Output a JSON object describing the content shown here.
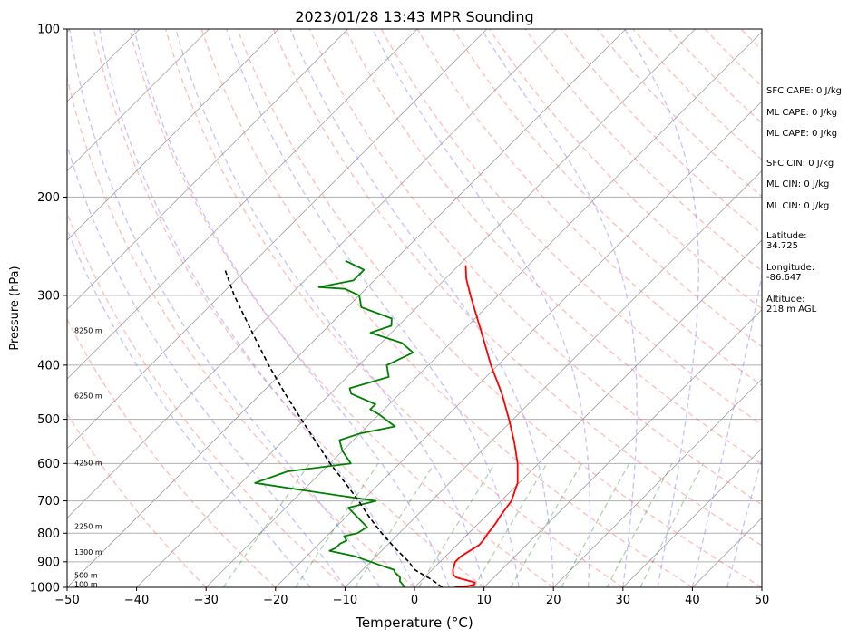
{
  "chart_data": {
    "type": "skew-t log-p sounding",
    "title": "2023/01/28 13:43 MPR Sounding",
    "xlabel": "Temperature (°C)",
    "ylabel": "Pressure (hPa)",
    "xlim": [
      -50,
      50
    ],
    "ylim_hpa": [
      1000,
      100
    ],
    "scale_y": "log",
    "grid": true,
    "x_ticks": [
      "−50",
      "−40",
      "−30",
      "−20",
      "−10",
      "0",
      "10",
      "20",
      "30",
      "40",
      "50"
    ],
    "y_ticks": [
      "100",
      "200",
      "300",
      "400",
      "500",
      "600",
      "700",
      "800",
      "900",
      "1000"
    ],
    "height_labels": [
      {
        "text": "100 m",
        "p": 990
      },
      {
        "text": "500 m",
        "p": 955
      },
      {
        "text": "1300 m",
        "p": 868
      },
      {
        "text": "2250 m",
        "p": 780
      },
      {
        "text": "4250 m",
        "p": 600
      },
      {
        "text": "6250 m",
        "p": 455
      },
      {
        "text": "8250 m",
        "p": 348
      }
    ],
    "series": [
      {
        "key": "temperature",
        "color": "#ff0000",
        "points": [
          [
            1000,
            5.8
          ],
          [
            995,
            7.3
          ],
          [
            990,
            8.2
          ],
          [
            980,
            8.0
          ],
          [
            970,
            6.3
          ],
          [
            960,
            4.6
          ],
          [
            950,
            3.8
          ],
          [
            930,
            3.0
          ],
          [
            900,
            2.2
          ],
          [
            880,
            2.2
          ],
          [
            860,
            2.7
          ],
          [
            840,
            3.2
          ],
          [
            820,
            3.1
          ],
          [
            800,
            2.8
          ],
          [
            770,
            2.5
          ],
          [
            740,
            2.0
          ],
          [
            700,
            1.5
          ],
          [
            650,
            -0.2
          ],
          [
            600,
            -3.0
          ],
          [
            550,
            -6.5
          ],
          [
            500,
            -10.6
          ],
          [
            450,
            -15.3
          ],
          [
            400,
            -21.0
          ],
          [
            350,
            -27.0
          ],
          [
            300,
            -34.0
          ],
          [
            280,
            -37.0
          ],
          [
            265,
            -39.0
          ]
        ]
      },
      {
        "key": "dewpoint",
        "color": "#008000",
        "points": [
          [
            1000,
            -1.5
          ],
          [
            990,
            -2.0
          ],
          [
            975,
            -3.0
          ],
          [
            960,
            -3.5
          ],
          [
            940,
            -5.0
          ],
          [
            930,
            -5.5
          ],
          [
            910,
            -8.5
          ],
          [
            880,
            -13.0
          ],
          [
            860,
            -17.5
          ],
          [
            850,
            -17.0
          ],
          [
            835,
            -17.0
          ],
          [
            825,
            -16.5
          ],
          [
            810,
            -17.5
          ],
          [
            800,
            -16.0
          ],
          [
            780,
            -15.5
          ],
          [
            720,
            -21.0
          ],
          [
            700,
            -18.0
          ],
          [
            670,
            -30.0
          ],
          [
            650,
            -38.0
          ],
          [
            620,
            -35.0
          ],
          [
            600,
            -27.0
          ],
          [
            570,
            -30.0
          ],
          [
            545,
            -32.0
          ],
          [
            530,
            -30.0
          ],
          [
            515,
            -26.0
          ],
          [
            490,
            -30.0
          ],
          [
            480,
            -32.0
          ],
          [
            470,
            -32.0
          ],
          [
            450,
            -37.0
          ],
          [
            440,
            -38.0
          ],
          [
            420,
            -34.0
          ],
          [
            400,
            -36.0
          ],
          [
            380,
            -34.0
          ],
          [
            365,
            -37.0
          ],
          [
            350,
            -43.0
          ],
          [
            340,
            -41.0
          ],
          [
            330,
            -42.0
          ],
          [
            315,
            -48.0
          ],
          [
            300,
            -50.0
          ],
          [
            292,
            -53.0
          ],
          [
            290,
            -57.0
          ],
          [
            282,
            -53.0
          ],
          [
            270,
            -53.0
          ],
          [
            260,
            -57.0
          ]
        ]
      },
      {
        "key": "parcel-profile",
        "color": "#000000",
        "style": "dashed",
        "points": [
          [
            1000,
            4.0
          ],
          [
            970,
            1.5
          ],
          [
            950,
            -0.5
          ],
          [
            930,
            -2.5
          ],
          [
            900,
            -4.5
          ],
          [
            850,
            -8.5
          ],
          [
            800,
            -12.5
          ],
          [
            750,
            -16.5
          ],
          [
            700,
            -20.5
          ],
          [
            650,
            -25.0
          ],
          [
            600,
            -30.0
          ],
          [
            550,
            -35.0
          ],
          [
            500,
            -40.5
          ],
          [
            450,
            -46.5
          ],
          [
            400,
            -53.0
          ],
          [
            350,
            -60.0
          ],
          [
            300,
            -68.0
          ],
          [
            270,
            -73.0
          ]
        ]
      }
    ],
    "background_lines": {
      "isotherms": "solid grey",
      "dry_adiabats": "dashed red",
      "moist_adiabats": "dashed blue",
      "mixing_ratio": "dashed green"
    }
  },
  "stats": {
    "sfc_cape": "SFC CAPE: 0 J/kg",
    "ml_cape": "ML CAPE: 0 J/kg",
    "ml_cape_2": "ML CAPE: 0 J/kg",
    "sfc_cin": "SFC CIN: 0 J/kg",
    "ml_cin": "ML CIN: 0 J/kg",
    "ml_cin_2": "ML CIN: 0 J/kg",
    "latitude_label": "Latitude:",
    "latitude_value": "34.725",
    "longitude_label": "Longitude:",
    "longitude_value": "-86.647",
    "altitude_label": "Altitude:",
    "altitude_value": "218 m AGL"
  }
}
